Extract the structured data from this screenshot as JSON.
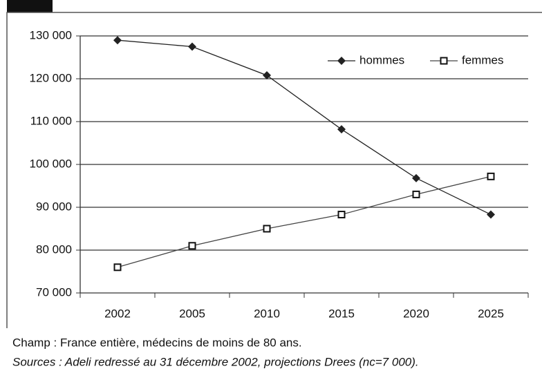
{
  "chart_data": {
    "type": "line",
    "categories": [
      "2002",
      "2005",
      "2010",
      "2015",
      "2020",
      "2025"
    ],
    "series": [
      {
        "name": "hommes",
        "color": "#222222",
        "marker": "diamond",
        "values": [
          129000,
          127500,
          120800,
          108200,
          96800,
          88300
        ]
      },
      {
        "name": "femmes",
        "color": "#444444",
        "marker": "square",
        "values": [
          76000,
          81000,
          85000,
          88300,
          93000,
          97200
        ]
      }
    ],
    "ylim": [
      70000,
      130000
    ],
    "yticks": [
      {
        "value": 70000,
        "label": "70 000"
      },
      {
        "value": 80000,
        "label": "80 000"
      },
      {
        "value": 90000,
        "label": "90 000"
      },
      {
        "value": 100000,
        "label": "100 000"
      },
      {
        "value": 110000,
        "label": "110 000"
      },
      {
        "value": 120000,
        "label": "120 000"
      },
      {
        "value": 130000,
        "label": "130 000"
      }
    ],
    "grid": true,
    "legend": "top-right",
    "notes": [
      "Champ : France entière, médecins de moins de 80 ans.",
      "Sources : Adeli redressé au 31 décembre 2002, projections Drees (nc=7 000)."
    ]
  }
}
